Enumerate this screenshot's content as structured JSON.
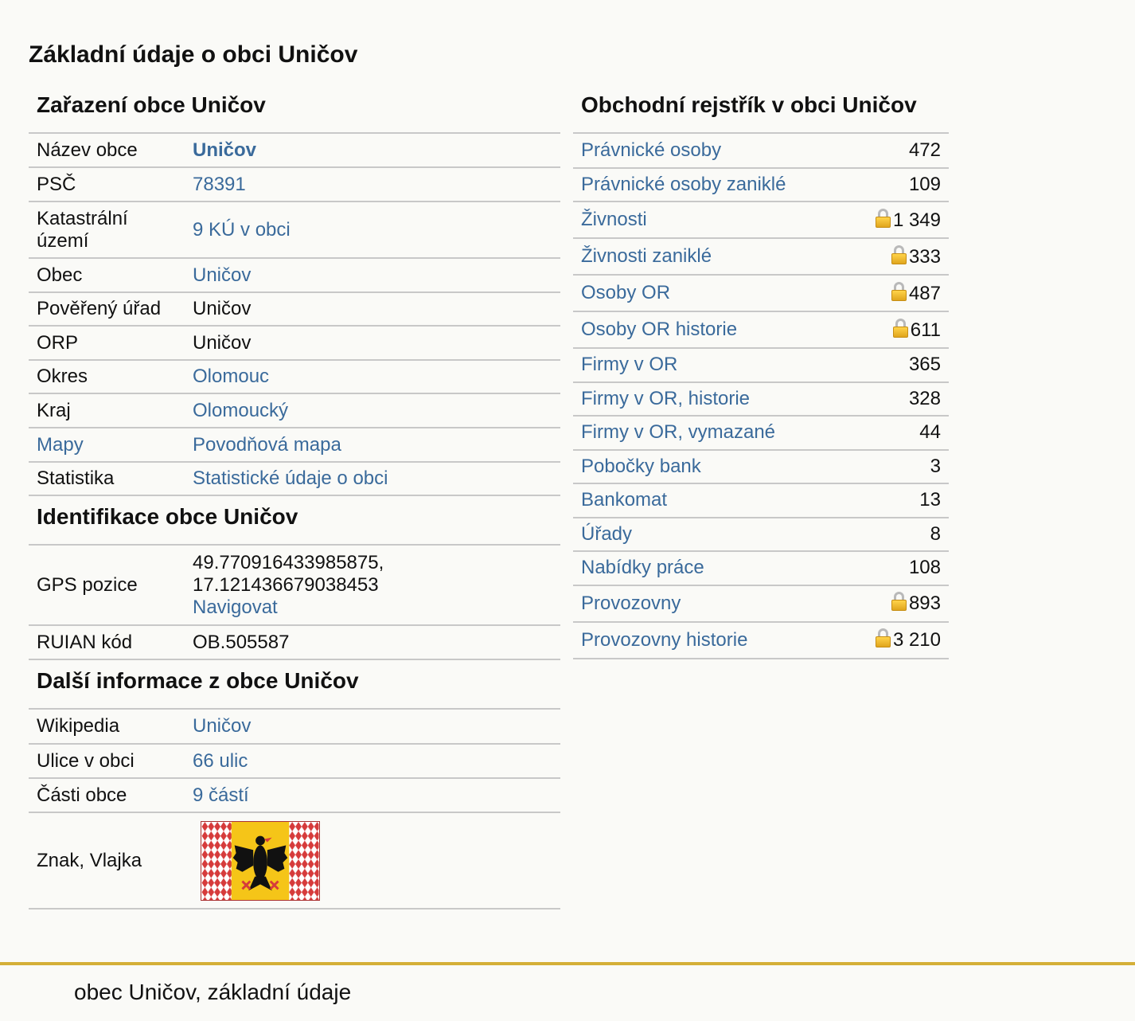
{
  "page": {
    "title": "Základní údaje o obci Uničov",
    "footer": "obec Uničov, základní údaje"
  },
  "zarazeni": {
    "heading": "Zařazení obce Uničov",
    "rows": [
      {
        "key": "Název obce",
        "value": "Uničov",
        "key_link": false,
        "value_link": true,
        "bold": true
      },
      {
        "key": "PSČ",
        "value": "78391",
        "key_link": false,
        "value_link": true
      },
      {
        "key": "Katastrální území",
        "value": "9 KÚ v obci",
        "key_link": false,
        "value_link": true
      },
      {
        "key": "Obec",
        "value": "Uničov",
        "key_link": false,
        "value_link": true
      },
      {
        "key": "Pověřený úřad",
        "value": "Uničov",
        "key_link": false,
        "value_link": false
      },
      {
        "key": "ORP",
        "value": "Uničov",
        "key_link": false,
        "value_link": false
      },
      {
        "key": "Okres",
        "value": "Olomouc",
        "key_link": false,
        "value_link": true
      },
      {
        "key": "Kraj",
        "value": "Olomoucký",
        "key_link": false,
        "value_link": true
      },
      {
        "key": "Mapy",
        "value": "Povodňová mapa",
        "key_link": true,
        "value_link": true
      },
      {
        "key": "Statistika",
        "value": "Statistické údaje o obci",
        "key_link": false,
        "value_link": true
      }
    ]
  },
  "identifikace": {
    "heading": "Identifikace obce Uničov",
    "gps_label": "GPS pozice",
    "gps_lat": "49.770916433985875,",
    "gps_lon": "17.121436679038453",
    "navigate": "Navigovat",
    "ruian_label": "RUIAN kód",
    "ruian_value": "OB.505587"
  },
  "dalsi": {
    "heading": "Další informace z obce Uničov",
    "rows": [
      {
        "key": "Wikipedia",
        "value": "Uničov"
      },
      {
        "key": "Ulice v obci",
        "value": "66 ulic"
      },
      {
        "key": "Části obce",
        "value": "9 částí"
      }
    ],
    "znak_label": "Znak, Vlajka"
  },
  "rejstrik": {
    "heading": "Obchodní rejstřík v obci Uničov",
    "rows": [
      {
        "label": "Právnické osoby",
        "value": "472",
        "locked": false
      },
      {
        "label": "Právnické osoby zaniklé",
        "value": "109",
        "locked": false
      },
      {
        "label": "Živnosti",
        "value": "1 349",
        "locked": true
      },
      {
        "label": "Živnosti zaniklé",
        "value": "333",
        "locked": true
      },
      {
        "label": "Osoby OR",
        "value": "487",
        "locked": true
      },
      {
        "label": "Osoby OR historie",
        "value": "611",
        "locked": true
      },
      {
        "label": "Firmy v OR",
        "value": "365",
        "locked": false
      },
      {
        "label": "Firmy v OR, historie",
        "value": "328",
        "locked": false
      },
      {
        "label": "Firmy v OR, vymazané",
        "value": "44",
        "locked": false
      },
      {
        "label": "Pobočky bank",
        "value": "3",
        "locked": false
      },
      {
        "label": "Bankomat",
        "value": "13",
        "locked": false
      },
      {
        "label": "Úřady",
        "value": "8",
        "locked": false
      },
      {
        "label": "Nabídky práce",
        "value": "108",
        "locked": false
      },
      {
        "label": "Provozovny",
        "value": "893",
        "locked": true
      },
      {
        "label": "Provozovny historie",
        "value": "3 210",
        "locked": true
      }
    ]
  },
  "colors": {
    "link": "#3a6a9b",
    "footer_line": "#d4af37",
    "border": "#c8c8c8"
  },
  "icons": {
    "lock": "padlock-icon",
    "flag": "coat-of-arms-flag"
  }
}
